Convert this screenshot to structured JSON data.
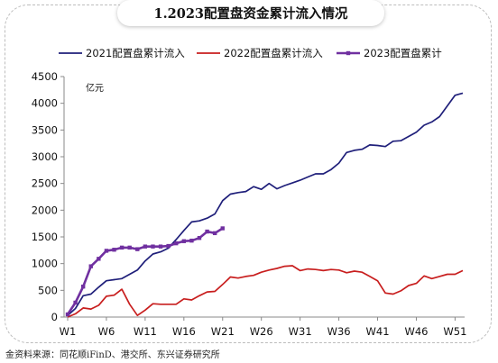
{
  "title": "1.2023配置盘资金累计流入情况",
  "source": "金资料来源：同花顺iFinD、港交所、东兴证券研究所",
  "chart_data": {
    "type": "line",
    "unit_label": "亿元",
    "ylim": [
      0,
      4500
    ],
    "yticks": [
      0,
      500,
      1000,
      1500,
      2000,
      2500,
      3000,
      3500,
      4000,
      4500
    ],
    "xlim": [
      1,
      52
    ],
    "xticks": [
      {
        "x": 1,
        "label": "W1"
      },
      {
        "x": 6,
        "label": "W6"
      },
      {
        "x": 11,
        "label": "W11"
      },
      {
        "x": 16,
        "label": "W16"
      },
      {
        "x": 21,
        "label": "W21"
      },
      {
        "x": 26,
        "label": "W26"
      },
      {
        "x": 31,
        "label": "W31"
      },
      {
        "x": 36,
        "label": "W36"
      },
      {
        "x": 41,
        "label": "W41"
      },
      {
        "x": 46,
        "label": "W46"
      },
      {
        "x": 51,
        "label": "W51"
      }
    ],
    "grid": false,
    "legend_position": "top",
    "series": [
      {
        "name": "2021配置盘累计流入",
        "color": "#1f1f7a",
        "x": [
          1,
          2,
          3,
          4,
          5,
          6,
          7,
          8,
          9,
          10,
          11,
          12,
          13,
          14,
          15,
          16,
          17,
          18,
          19,
          20,
          21,
          22,
          23,
          24,
          25,
          26,
          27,
          28,
          29,
          30,
          31,
          32,
          33,
          34,
          35,
          36,
          37,
          38,
          39,
          40,
          41,
          42,
          43,
          44,
          45,
          46,
          47,
          48,
          49,
          50,
          51,
          52
        ],
        "values": [
          30,
          160,
          400,
          430,
          560,
          680,
          700,
          720,
          800,
          880,
          1050,
          1180,
          1220,
          1290,
          1450,
          1620,
          1780,
          1800,
          1850,
          1930,
          2180,
          2300,
          2330,
          2350,
          2440,
          2390,
          2500,
          2400,
          2460,
          2510,
          2560,
          2620,
          2680,
          2680,
          2760,
          2880,
          3080,
          3120,
          3140,
          3220,
          3210,
          3190,
          3290,
          3300,
          3380,
          3460,
          3590,
          3650,
          3750,
          3950,
          4150,
          4190
        ],
        "marker": false
      },
      {
        "name": "2022配置盘累计流入",
        "color": "#c81e1e",
        "x": [
          1,
          2,
          3,
          4,
          5,
          6,
          7,
          8,
          9,
          10,
          11,
          12,
          13,
          14,
          15,
          16,
          17,
          18,
          19,
          20,
          21,
          22,
          23,
          24,
          25,
          26,
          27,
          28,
          29,
          30,
          31,
          32,
          33,
          34,
          35,
          36,
          37,
          38,
          39,
          40,
          41,
          42,
          43,
          44,
          45,
          46,
          47,
          48,
          49,
          50,
          51,
          52
        ],
        "values": [
          0,
          60,
          170,
          150,
          220,
          390,
          410,
          520,
          240,
          30,
          130,
          250,
          240,
          240,
          240,
          340,
          320,
          400,
          470,
          480,
          610,
          750,
          730,
          760,
          780,
          840,
          880,
          910,
          950,
          960,
          870,
          900,
          890,
          870,
          890,
          880,
          830,
          860,
          840,
          760,
          680,
          450,
          430,
          490,
          590,
          630,
          770,
          720,
          760,
          800,
          800,
          870
        ],
        "marker": false
      },
      {
        "name": "2023配置盘累计",
        "color": "#7030a0",
        "x": [
          1,
          2,
          3,
          4,
          5,
          6,
          7,
          8,
          9,
          10,
          11,
          12,
          13,
          14,
          15,
          16,
          17,
          18,
          19,
          20,
          21
        ],
        "values": [
          50,
          270,
          570,
          950,
          1090,
          1240,
          1260,
          1300,
          1300,
          1270,
          1320,
          1320,
          1320,
          1330,
          1380,
          1420,
          1430,
          1480,
          1600,
          1570,
          1660
        ],
        "marker": true
      }
    ]
  }
}
